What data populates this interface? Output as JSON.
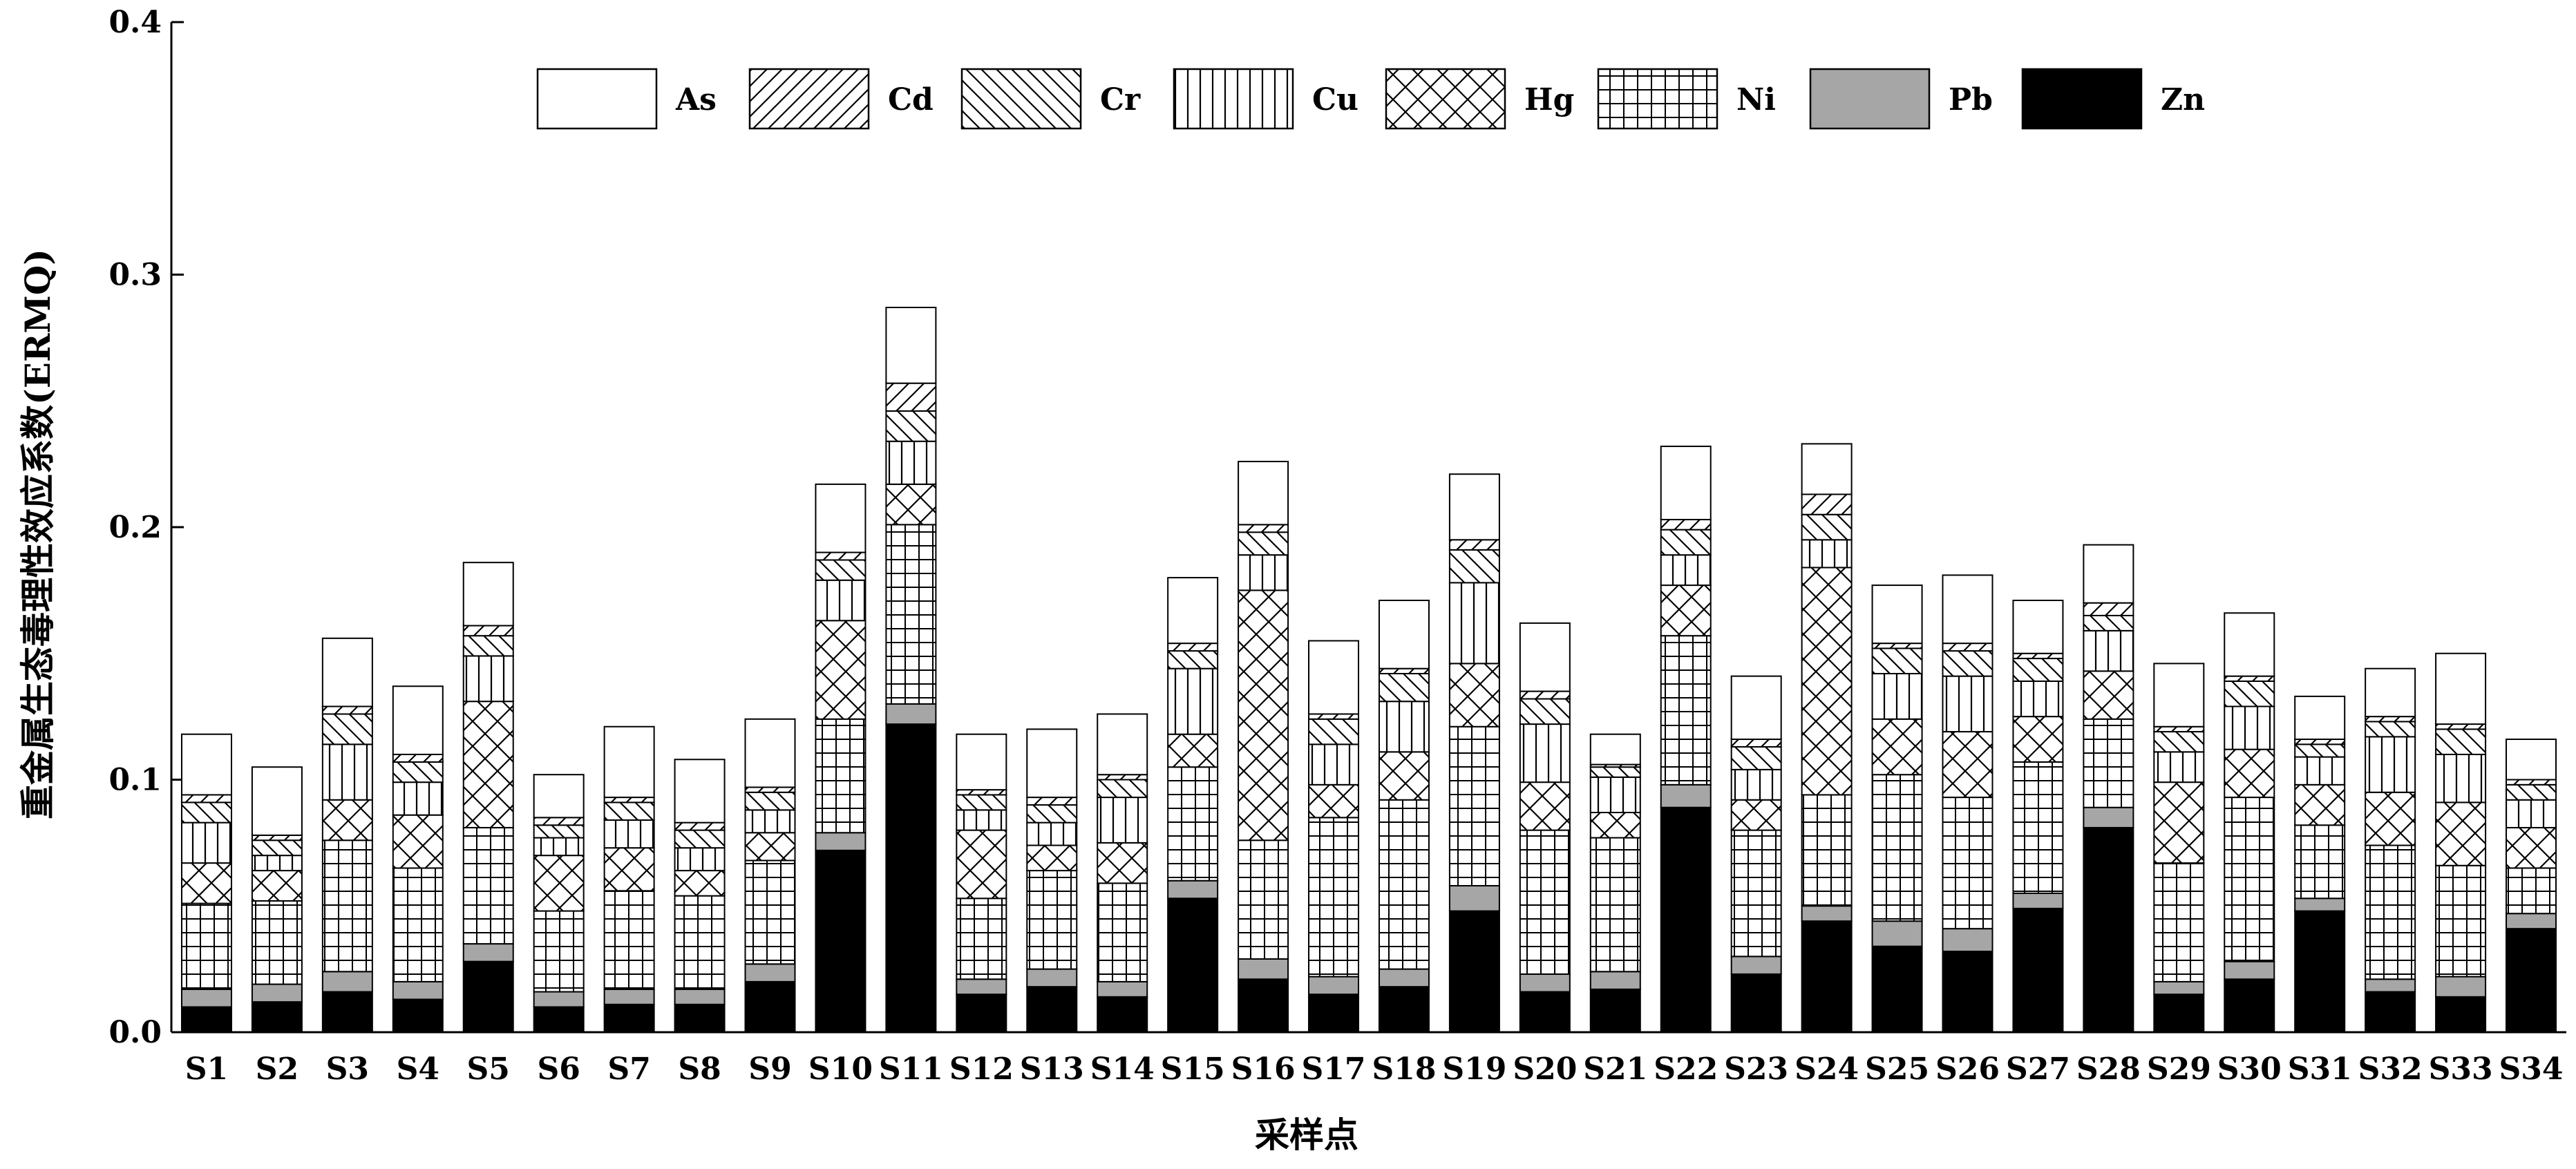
{
  "chart_data": {
    "type": "bar",
    "stacked": true,
    "xlabel": "采样点",
    "ylabel": "重金属生态毒理性效应系数(ERMQ)",
    "ylim": [
      0,
      0.4
    ],
    "yticks": [
      "0.0",
      "0.1",
      "0.2",
      "0.3",
      "0.4"
    ],
    "grid": false,
    "legend_position": "top",
    "categories": [
      "S1",
      "S2",
      "S3",
      "S4",
      "S5",
      "S6",
      "S7",
      "S8",
      "S9",
      "S10",
      "S11",
      "S12",
      "S13",
      "S14",
      "S15",
      "S16",
      "S17",
      "S18",
      "S19",
      "S20",
      "S21",
      "S22",
      "S23",
      "S24",
      "S25",
      "S26",
      "S27",
      "S28",
      "S29",
      "S30",
      "S31",
      "S32",
      "S33",
      "S34"
    ],
    "series": [
      {
        "name": "Zn",
        "pattern": "solid-black",
        "values": [
          0.01,
          0.012,
          0.016,
          0.013,
          0.028,
          0.01,
          0.011,
          0.011,
          0.02,
          0.072,
          0.122,
          0.015,
          0.018,
          0.014,
          0.053,
          0.021,
          0.015,
          0.018,
          0.048,
          0.016,
          0.017,
          0.089,
          0.023,
          0.044,
          0.034,
          0.032,
          0.049,
          0.081,
          0.015,
          0.021,
          0.048,
          0.016,
          0.014,
          0.041
        ]
      },
      {
        "name": "Pb",
        "pattern": "solid-gray",
        "values": [
          0.007,
          0.007,
          0.008,
          0.007,
          0.007,
          0.006,
          0.006,
          0.006,
          0.007,
          0.007,
          0.008,
          0.006,
          0.007,
          0.006,
          0.007,
          0.008,
          0.007,
          0.007,
          0.01,
          0.007,
          0.007,
          0.009,
          0.007,
          0.006,
          0.01,
          0.009,
          0.006,
          0.008,
          0.005,
          0.007,
          0.005,
          0.005,
          0.008,
          0.006
        ]
      },
      {
        "name": "Ni",
        "pattern": "grid",
        "values": [
          0.034,
          0.033,
          0.052,
          0.045,
          0.046,
          0.032,
          0.039,
          0.037,
          0.041,
          0.045,
          0.071,
          0.032,
          0.039,
          0.039,
          0.045,
          0.047,
          0.063,
          0.067,
          0.063,
          0.057,
          0.053,
          0.059,
          0.05,
          0.044,
          0.058,
          0.052,
          0.052,
          0.035,
          0.047,
          0.065,
          0.029,
          0.053,
          0.044,
          0.018
        ]
      },
      {
        "name": "Hg",
        "pattern": "cross-hatch",
        "values": [
          0.016,
          0.012,
          0.016,
          0.021,
          0.05,
          0.022,
          0.017,
          0.01,
          0.011,
          0.039,
          0.016,
          0.027,
          0.01,
          0.016,
          0.013,
          0.099,
          0.013,
          0.019,
          0.025,
          0.019,
          0.01,
          0.02,
          0.012,
          0.09,
          0.022,
          0.026,
          0.018,
          0.019,
          0.032,
          0.019,
          0.016,
          0.021,
          0.025,
          0.016
        ]
      },
      {
        "name": "Cu",
        "pattern": "vertical-lines",
        "values": [
          0.016,
          0.006,
          0.022,
          0.013,
          0.018,
          0.007,
          0.011,
          0.009,
          0.009,
          0.016,
          0.017,
          0.008,
          0.009,
          0.018,
          0.026,
          0.014,
          0.016,
          0.02,
          0.032,
          0.023,
          0.014,
          0.012,
          0.012,
          0.011,
          0.018,
          0.022,
          0.014,
          0.016,
          0.012,
          0.017,
          0.011,
          0.022,
          0.019,
          0.011
        ]
      },
      {
        "name": "Cr",
        "pattern": "backslash-hatch",
        "values": [
          0.008,
          0.006,
          0.012,
          0.008,
          0.008,
          0.005,
          0.007,
          0.007,
          0.007,
          0.008,
          0.012,
          0.006,
          0.007,
          0.007,
          0.007,
          0.009,
          0.01,
          0.011,
          0.013,
          0.01,
          0.004,
          0.01,
          0.009,
          0.01,
          0.01,
          0.01,
          0.009,
          0.006,
          0.008,
          0.01,
          0.005,
          0.006,
          0.01,
          0.006
        ]
      },
      {
        "name": "Cd",
        "pattern": "slash-hatch",
        "values": [
          0.003,
          0.002,
          0.003,
          0.003,
          0.004,
          0.003,
          0.002,
          0.003,
          0.002,
          0.003,
          0.011,
          0.002,
          0.003,
          0.002,
          0.003,
          0.003,
          0.002,
          0.002,
          0.004,
          0.003,
          0.001,
          0.004,
          0.003,
          0.008,
          0.002,
          0.003,
          0.002,
          0.005,
          0.002,
          0.002,
          0.002,
          0.002,
          0.002,
          0.002
        ]
      },
      {
        "name": "As",
        "pattern": "white",
        "values": [
          0.024,
          0.027,
          0.027,
          0.027,
          0.025,
          0.017,
          0.028,
          0.025,
          0.027,
          0.027,
          0.03,
          0.022,
          0.027,
          0.024,
          0.026,
          0.025,
          0.029,
          0.027,
          0.026,
          0.027,
          0.012,
          0.029,
          0.025,
          0.02,
          0.023,
          0.027,
          0.021,
          0.023,
          0.025,
          0.025,
          0.017,
          0.019,
          0.028,
          0.016
        ]
      }
    ]
  }
}
